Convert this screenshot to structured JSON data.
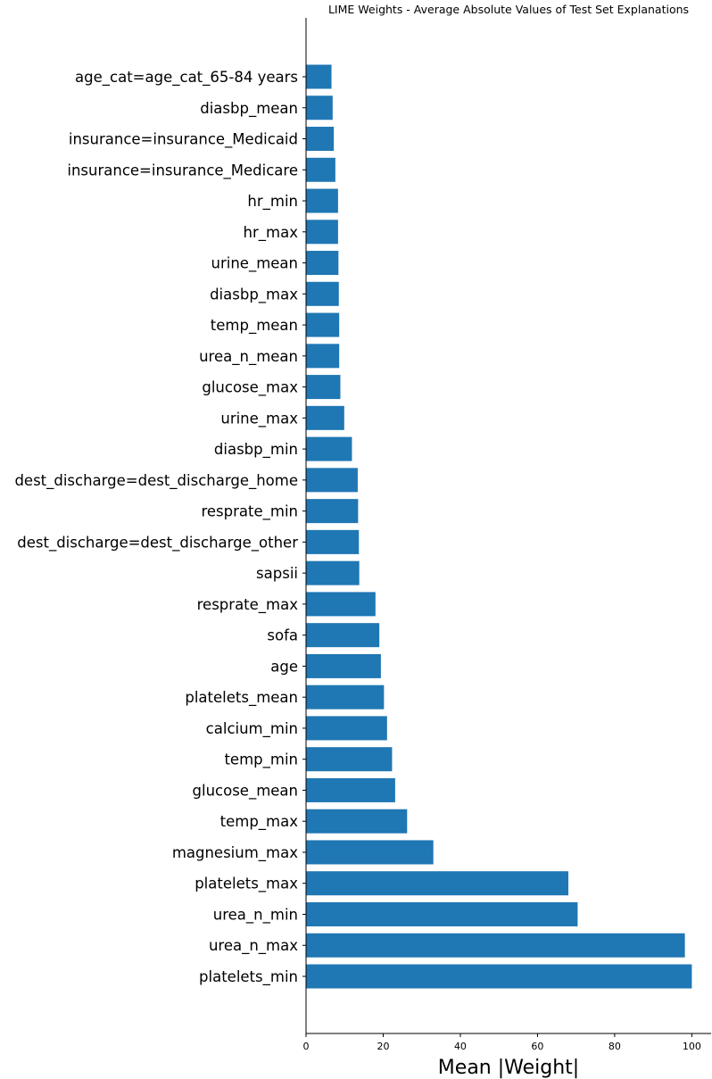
{
  "chart_data": {
    "type": "bar",
    "orientation": "horizontal",
    "title": "LIME Weights - Average Absolute Values of Test Set Explanations",
    "xlabel": "Mean |Weight|",
    "ylabel": "",
    "xlim": [
      0,
      105
    ],
    "xticks": [
      0,
      20,
      40,
      60,
      80,
      100
    ],
    "xtick_labels": [
      "0",
      "20",
      "40",
      "60",
      "80",
      "100"
    ],
    "grid": false,
    "bar_color": "#1f77b4",
    "categories": [
      "age_cat=age_cat_65-84 years",
      "diasbp_mean",
      "insurance=insurance_Medicaid",
      "insurance=insurance_Medicare",
      "hr_min",
      "hr_max",
      "urine_mean",
      "diasbp_max",
      "temp_mean",
      "urea_n_mean",
      "glucose_max",
      "urine_max",
      "diasbp_min",
      "dest_discharge=dest_discharge_home",
      "resprate_min",
      "dest_discharge=dest_discharge_other",
      "sapsii",
      "resprate_max",
      "sofa",
      "age",
      "platelets_mean",
      "calcium_min",
      "temp_min",
      "glucose_mean",
      "temp_max",
      "magnesium_max",
      "platelets_max",
      "urea_n_min",
      "urea_n_max",
      "platelets_min"
    ],
    "values": [
      6.6,
      6.9,
      7.2,
      7.6,
      8.3,
      8.3,
      8.4,
      8.5,
      8.6,
      8.6,
      8.9,
      9.9,
      11.9,
      13.4,
      13.5,
      13.7,
      13.8,
      18.0,
      19.0,
      19.4,
      20.2,
      21.0,
      22.3,
      23.1,
      26.2,
      33.0,
      68.0,
      70.4,
      98.2,
      100.0
    ]
  }
}
